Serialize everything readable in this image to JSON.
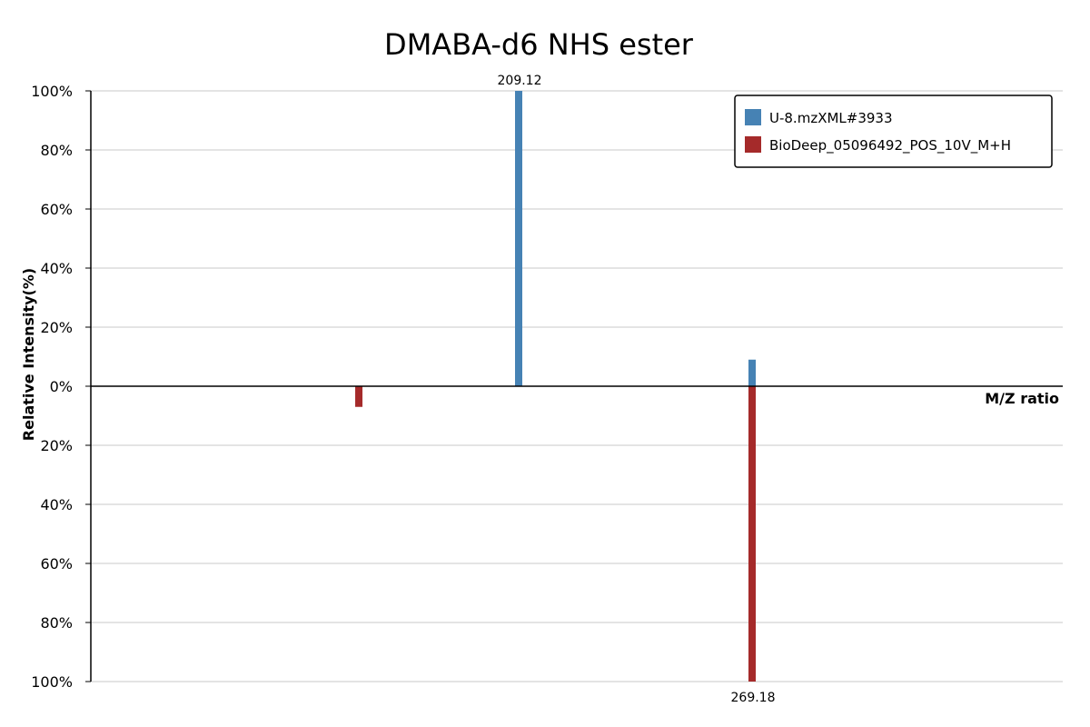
{
  "chart_data": {
    "type": "bar",
    "title": "DMABA-d6 NHS ester",
    "xlabel": "M/Z ratio",
    "ylabel": "Relative Intensity(%)",
    "y_tick_labels_top": [
      "100%",
      "80%",
      "60%",
      "40%",
      "20%",
      "0%"
    ],
    "y_tick_labels_bottom": [
      "20%",
      "40%",
      "60%",
      "80%",
      "100%"
    ],
    "ylim": [
      -100,
      100
    ],
    "grid": true,
    "legend_position": "top-right",
    "series": [
      {
        "name": "U-8.mzXML#3933",
        "color": "#4682b4",
        "direction": "up",
        "peaks": [
          {
            "mz": 209.12,
            "intensity": 100,
            "label": "209.12"
          },
          {
            "mz": 269.18,
            "intensity": 9
          }
        ]
      },
      {
        "name": "BioDeep_05096492_POS_10V_M+H",
        "color": "#a52a2a",
        "direction": "down",
        "peaks": [
          {
            "mz": 168.0,
            "intensity": 7
          },
          {
            "mz": 269.18,
            "intensity": 100,
            "label": "269.18"
          }
        ]
      }
    ]
  }
}
